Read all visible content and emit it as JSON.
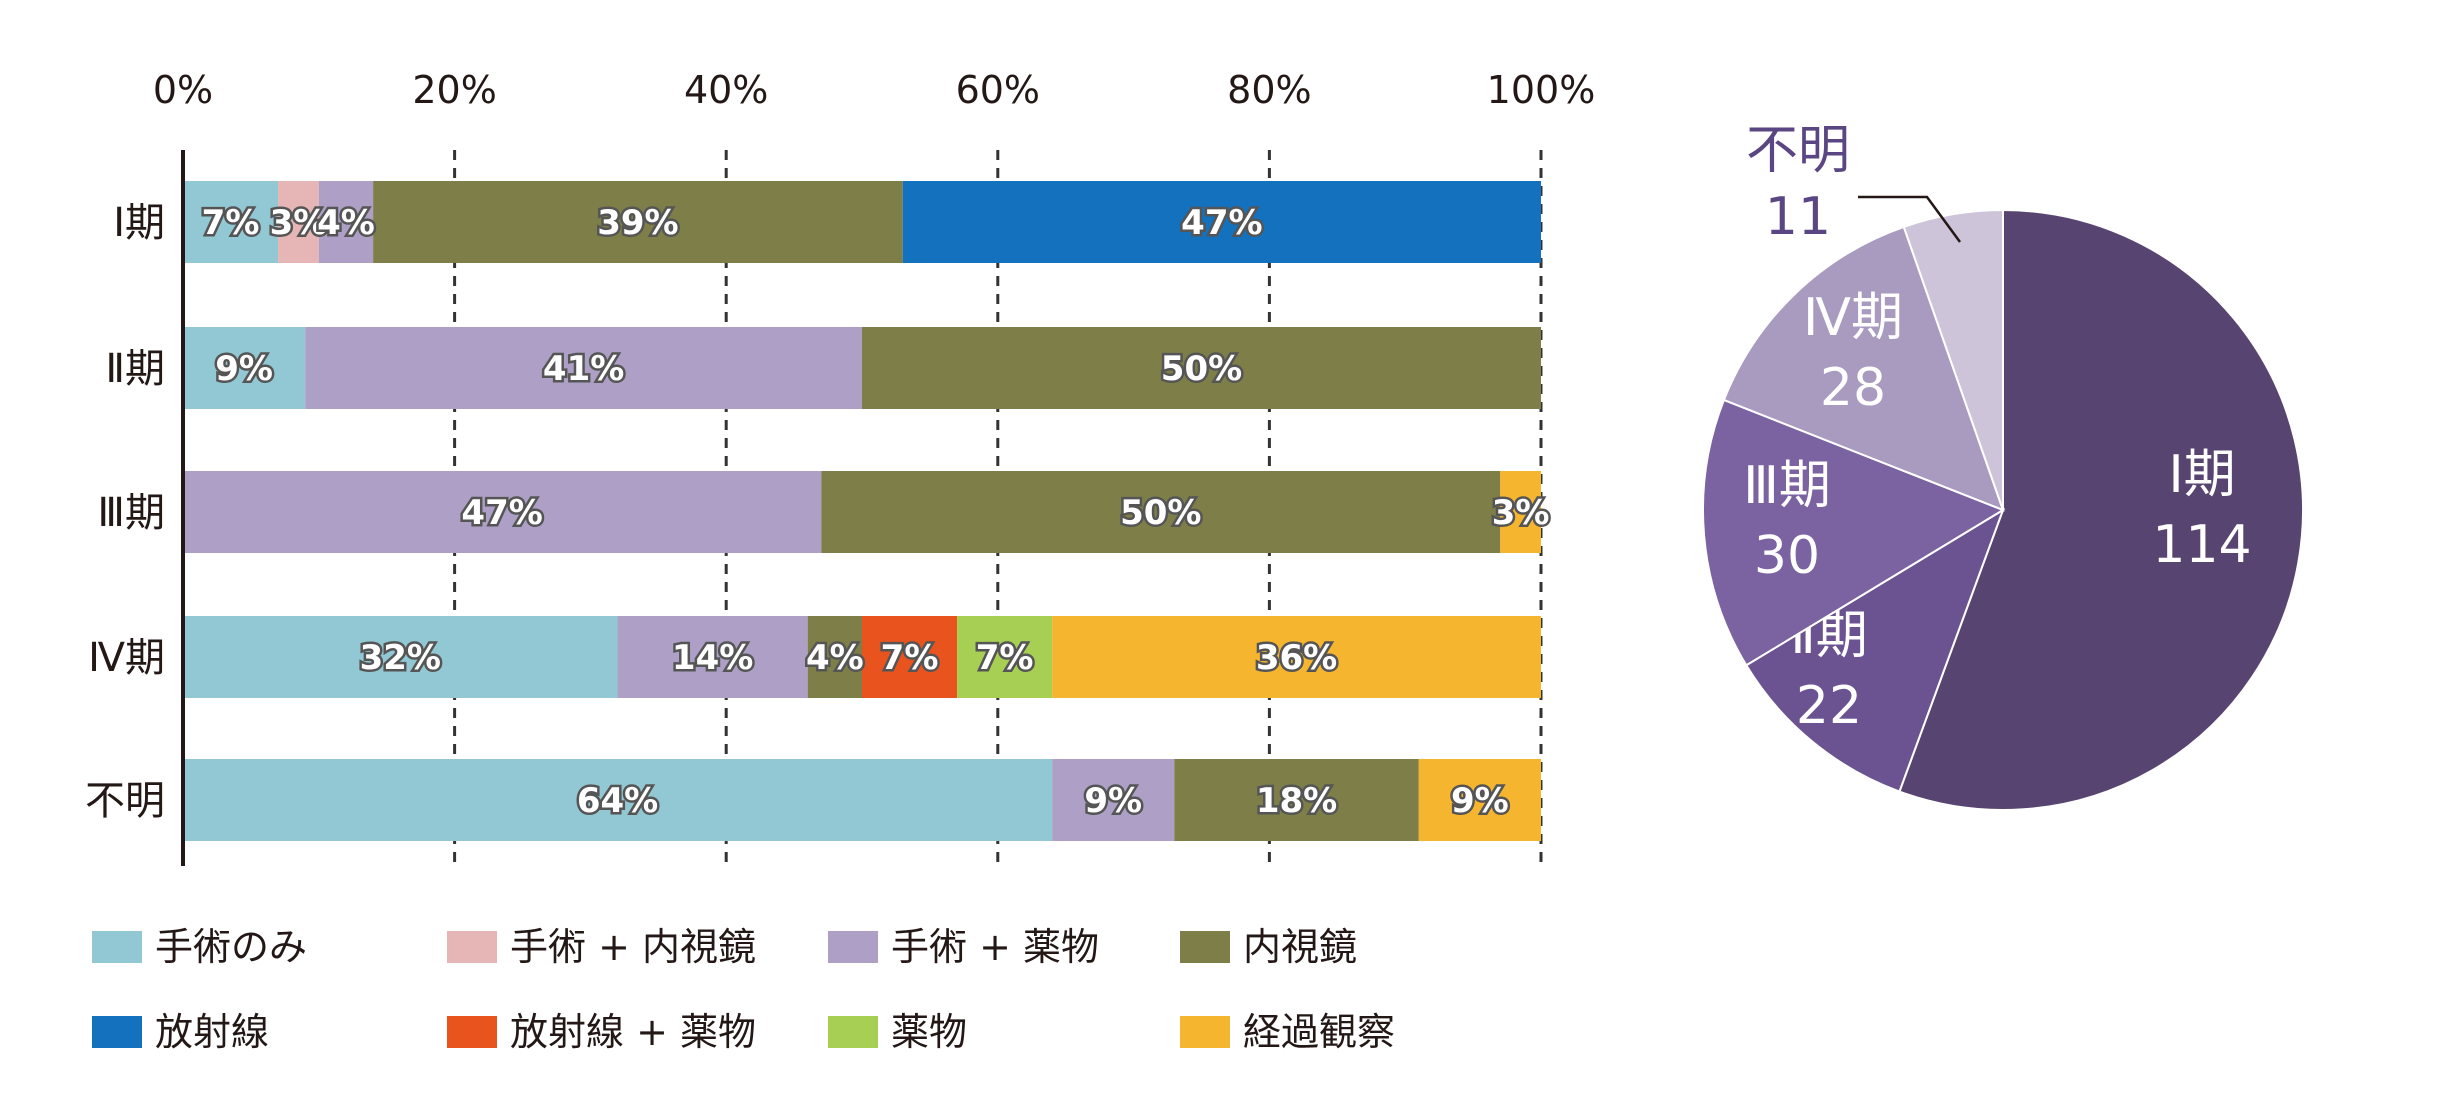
{
  "chart_data": [
    {
      "type": "bar",
      "orientation": "horizontal",
      "stacked": true,
      "title": "",
      "xlabel": "",
      "ylabel": "",
      "xlim": [
        0,
        100
      ],
      "x_ticks": [
        "0%",
        "20%",
        "40%",
        "60%",
        "80%",
        "100%"
      ],
      "grid": "vertical dashed",
      "legend_position": "bottom",
      "categories": [
        "Ⅰ期",
        "Ⅱ期",
        "Ⅲ期",
        "Ⅳ期",
        "不明"
      ],
      "series": [
        {
          "name": "手術のみ",
          "color": "#92c7d4",
          "values": [
            7,
            9,
            0,
            32,
            64
          ],
          "labels": [
            "7%",
            "9%",
            "",
            "32%",
            "64%"
          ]
        },
        {
          "name": "手術 + 内視鏡",
          "color": "#e6b5b5",
          "values": [
            3,
            0,
            0,
            0,
            0
          ],
          "labels": [
            "3%",
            "",
            "",
            "",
            ""
          ]
        },
        {
          "name": "手術 + 薬物",
          "color": "#ae9fc6",
          "values": [
            4,
            41,
            47,
            14,
            9
          ],
          "labels": [
            "4%",
            "41%",
            "47%",
            "14%",
            "9%"
          ]
        },
        {
          "name": "内視鏡",
          "color": "#7e7e48",
          "values": [
            39,
            50,
            50,
            4,
            18
          ],
          "labels": [
            "39%",
            "50%",
            "50%",
            "4%",
            "18%"
          ]
        },
        {
          "name": "放射線",
          "color": "#1371bd",
          "values": [
            47,
            0,
            0,
            0,
            0
          ],
          "labels": [
            "47%",
            "",
            "",
            "",
            ""
          ]
        },
        {
          "name": "放射線 + 薬物",
          "color": "#e9541e",
          "values": [
            0,
            0,
            0,
            7,
            0
          ],
          "labels": [
            "",
            "",
            "",
            "7%",
            ""
          ]
        },
        {
          "name": "薬物",
          "color": "#a6cf53",
          "values": [
            0,
            0,
            0,
            7,
            0
          ],
          "labels": [
            "",
            "",
            "",
            "7%",
            ""
          ]
        },
        {
          "name": "経過観察",
          "color": "#f6b52e",
          "values": [
            0,
            0,
            3,
            36,
            9
          ],
          "labels": [
            "",
            "",
            "3%",
            "36%",
            "9%"
          ]
        }
      ]
    },
    {
      "type": "pie",
      "title": "",
      "slices": [
        {
          "label": "Ⅰ期",
          "value": 114,
          "color": "#574470"
        },
        {
          "label": "Ⅱ期",
          "value": 22,
          "color": "#6a5390"
        },
        {
          "label": "Ⅲ期",
          "value": 30,
          "color": "#7b62a0"
        },
        {
          "label": "Ⅳ期",
          "value": 28,
          "color": "#a99abf"
        },
        {
          "label": "不明",
          "value": 11,
          "color": "#cdc4da"
        }
      ]
    }
  ]
}
